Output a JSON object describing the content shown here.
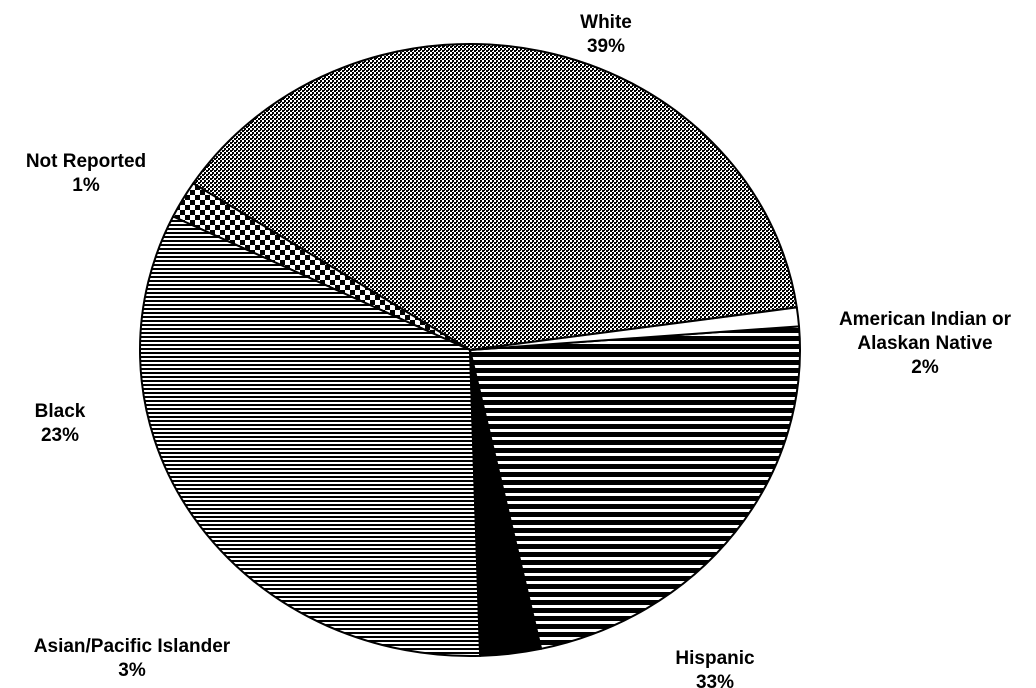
{
  "chart_data": {
    "type": "pie",
    "title": "",
    "slices": [
      {
        "label": "White",
        "line2": "",
        "pct_label": "39%",
        "value": 39,
        "pattern": "dots"
      },
      {
        "label": "American Indian or",
        "line2": "Alaskan Native",
        "pct_label": "2%",
        "value": 2,
        "pattern": "checker"
      },
      {
        "label": "Hispanic",
        "line2": "",
        "pct_label": "33%",
        "value": 33,
        "pattern": "fine-hlines"
      },
      {
        "label": "Asian/Pacific Islander",
        "line2": "",
        "pct_label": "3%",
        "value": 3,
        "pattern": "solid"
      },
      {
        "label": "Black",
        "line2": "",
        "pct_label": "23%",
        "value": 23,
        "pattern": "wide-hlines"
      },
      {
        "label": "Not Reported",
        "line2": "",
        "pct_label": "1%",
        "value": 1,
        "pattern": "blank"
      }
    ],
    "colors": {
      "ink": "#000000",
      "paper": "#ffffff"
    },
    "legend": "none"
  }
}
